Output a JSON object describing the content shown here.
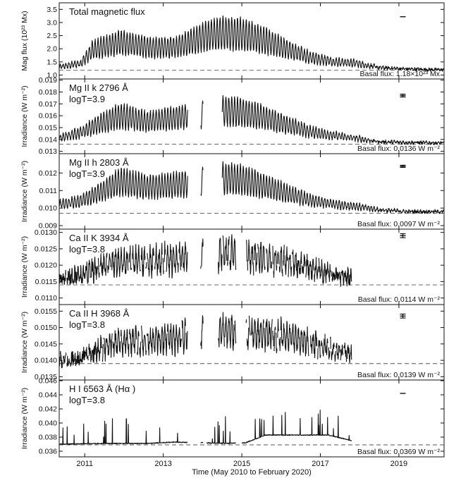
{
  "figure": {
    "xlabel": "Time (May 2010 to February 2020)"
  },
  "chart_data": [
    {
      "type": "line",
      "title": "Total magnetic flux",
      "subtitle": "",
      "ylabel": "Mag flux (10²³ Mx)",
      "basal_label": "Basal flux: 1.18×10²³ Mx",
      "basal": 1.18,
      "ylim": [
        0.85,
        3.75
      ],
      "yticks": [
        1.0,
        1.5,
        2.0,
        2.5,
        3.0,
        3.5
      ],
      "ytick_labels": [
        "1.0",
        "1.5",
        "2.0",
        "2.5",
        "3.0",
        "3.5"
      ],
      "xlim": [
        2010.35,
        2020.15
      ],
      "xticks": [
        2011,
        2013,
        2015,
        2017,
        2019
      ],
      "xtick_labels": [
        "2011",
        "2013",
        "2015",
        "2017",
        "2019"
      ],
      "error_bar": {
        "x": 2019.1,
        "y": 3.22,
        "err": 0.0
      },
      "envelope": [
        [
          2010.35,
          1.3
        ],
        [
          2010.9,
          1.45
        ],
        [
          2011.2,
          1.95
        ],
        [
          2011.9,
          2.25
        ],
        [
          2012.6,
          2.05
        ],
        [
          2013.3,
          2.05
        ],
        [
          2014.0,
          2.45
        ],
        [
          2014.5,
          2.6
        ],
        [
          2015.0,
          2.55
        ],
        [
          2015.5,
          2.35
        ],
        [
          2016.2,
          1.95
        ],
        [
          2016.8,
          1.65
        ],
        [
          2017.4,
          1.5
        ],
        [
          2017.9,
          1.45
        ],
        [
          2018.5,
          1.28
        ],
        [
          2019.2,
          1.23
        ],
        [
          2020.15,
          1.2
        ]
      ],
      "gaps": []
    },
    {
      "type": "line",
      "title": "Mg II k 2796 Å",
      "subtitle": "logT=3.9",
      "ylabel": "Irradiance (W m⁻²)",
      "basal_label": "Basal flux: 0.0136 W m⁻²",
      "basal": 0.0136,
      "ylim": [
        0.0128,
        0.0191
      ],
      "yticks": [
        0.013,
        0.014,
        0.015,
        0.016,
        0.017,
        0.018,
        0.019
      ],
      "ytick_labels": [
        "0.013",
        "0.014",
        "0.015",
        "0.016",
        "0.017",
        "0.018",
        "0.019"
      ],
      "xlim": [
        2010.35,
        2020.15
      ],
      "xticks": [
        2011,
        2013,
        2015,
        2017,
        2019
      ],
      "xtick_labels": [
        "2011",
        "2013",
        "2015",
        "2017",
        "2019"
      ],
      "error_bar": {
        "x": 2019.1,
        "y": 0.0177,
        "err": 0.00012
      },
      "envelope": [
        [
          2010.35,
          0.0141
        ],
        [
          2010.9,
          0.0146
        ],
        [
          2011.3,
          0.0152
        ],
        [
          2011.9,
          0.016
        ],
        [
          2012.6,
          0.0155
        ],
        [
          2013.3,
          0.0158
        ],
        [
          2014.5,
          0.0164
        ],
        [
          2015.0,
          0.0163
        ],
        [
          2015.5,
          0.0159
        ],
        [
          2016.2,
          0.0152
        ],
        [
          2016.8,
          0.0146
        ],
        [
          2017.4,
          0.0143
        ],
        [
          2017.9,
          0.0141
        ],
        [
          2018.5,
          0.0138
        ],
        [
          2019.2,
          0.01375
        ],
        [
          2020.15,
          0.0137
        ]
      ],
      "gaps": [
        [
          2013.62,
          2013.95
        ],
        [
          2014.02,
          2014.5
        ]
      ]
    },
    {
      "type": "line",
      "title": "Mg II h 2803 Å",
      "subtitle": "logT=3.9",
      "ylabel": "Irradiance (W m⁻²)",
      "basal_label": "Basal flux: 0.0097 W m⁻²",
      "basal": 0.0097,
      "ylim": [
        0.0088,
        0.0131
      ],
      "yticks": [
        0.009,
        0.01,
        0.011,
        0.012
      ],
      "ytick_labels": [
        "0.009",
        "0.010",
        "0.011",
        "0.012"
      ],
      "xlim": [
        2010.35,
        2020.15
      ],
      "xticks": [
        2011,
        2013,
        2015,
        2017,
        2019
      ],
      "xtick_labels": [
        "2011",
        "2013",
        "2015",
        "2017",
        "2019"
      ],
      "error_bar": {
        "x": 2019.1,
        "y": 0.01238,
        "err": 6e-05
      },
      "envelope": [
        [
          2010.35,
          0.0102
        ],
        [
          2010.9,
          0.0104
        ],
        [
          2011.3,
          0.0108
        ],
        [
          2011.9,
          0.0115
        ],
        [
          2012.6,
          0.0112
        ],
        [
          2013.3,
          0.0113
        ],
        [
          2014.5,
          0.0117
        ],
        [
          2015.0,
          0.0116
        ],
        [
          2015.5,
          0.0113
        ],
        [
          2016.2,
          0.0108
        ],
        [
          2016.8,
          0.0104
        ],
        [
          2017.4,
          0.0102
        ],
        [
          2017.9,
          0.0101
        ],
        [
          2018.5,
          0.0099
        ],
        [
          2019.2,
          0.0098
        ],
        [
          2020.15,
          0.0098
        ]
      ],
      "gaps": [
        [
          2013.62,
          2013.95
        ],
        [
          2014.02,
          2014.5
        ]
      ]
    },
    {
      "type": "line",
      "title": "Ca II K 3934 Å",
      "subtitle": "logT=3.8",
      "ylabel": "Irradiance (W m⁻²)",
      "basal_label": "Basal flux: 0.0114 W m⁻²",
      "basal": 0.0114,
      "ylim": [
        0.0108,
        0.0131
      ],
      "yticks": [
        0.011,
        0.0115,
        0.012,
        0.0125,
        0.013
      ],
      "ytick_labels": [
        "0.0110",
        "0.0115",
        "0.0120",
        "0.0125",
        "0.0130"
      ],
      "xlim": [
        2010.35,
        2020.15
      ],
      "xticks": [
        2011,
        2013,
        2015,
        2017,
        2019
      ],
      "xtick_labels": [
        "2011",
        "2013",
        "2015",
        "2017",
        "2019"
      ],
      "error_bar": {
        "x": 2019.1,
        "y": 0.0129,
        "err": 6e-05
      },
      "envelope": [
        [
          2010.35,
          0.0116
        ],
        [
          2010.9,
          0.0117
        ],
        [
          2011.3,
          0.0119
        ],
        [
          2011.9,
          0.0121
        ],
        [
          2012.6,
          0.0121
        ],
        [
          2013.3,
          0.0122
        ],
        [
          2014.5,
          0.0124
        ],
        [
          2015.0,
          0.0123
        ],
        [
          2015.5,
          0.0122
        ],
        [
          2016.2,
          0.0121
        ],
        [
          2016.8,
          0.0119
        ],
        [
          2017.4,
          0.0117
        ],
        [
          2017.8,
          0.0116
        ]
      ],
      "gaps": [
        [
          2013.62,
          2013.95
        ],
        [
          2014.02,
          2014.4
        ],
        [
          2014.85,
          2015.1
        ],
        [
          2017.8,
          2020.2
        ]
      ]
    },
    {
      "type": "line",
      "title": "Ca II H 3968 Å",
      "subtitle": "logT=3.8",
      "ylabel": "Irradiance (W m⁻²)",
      "basal_label": "Basal flux: 0.0139 W m⁻²",
      "basal": 0.0139,
      "ylim": [
        0.0134,
        0.0157
      ],
      "yticks": [
        0.0135,
        0.014,
        0.0145,
        0.015,
        0.0155
      ],
      "ytick_labels": [
        "0.0135",
        "0.0140",
        "0.0145",
        "0.0150",
        "0.0155"
      ],
      "xlim": [
        2010.35,
        2020.15
      ],
      "xticks": [
        2011,
        2013,
        2015,
        2017,
        2019
      ],
      "xtick_labels": [
        "2011",
        "2013",
        "2015",
        "2017",
        "2019"
      ],
      "error_bar": {
        "x": 2019.1,
        "y": 0.01535,
        "err": 6e-05
      },
      "envelope": [
        [
          2010.35,
          0.014
        ],
        [
          2010.9,
          0.0141
        ],
        [
          2011.3,
          0.0143
        ],
        [
          2011.9,
          0.0146
        ],
        [
          2012.6,
          0.0146
        ],
        [
          2013.3,
          0.0147
        ],
        [
          2014.5,
          0.0149
        ],
        [
          2015.0,
          0.0148
        ],
        [
          2015.5,
          0.0148
        ],
        [
          2016.2,
          0.0147
        ],
        [
          2016.8,
          0.0145
        ],
        [
          2017.4,
          0.0143
        ],
        [
          2017.8,
          0.0142
        ]
      ],
      "gaps": [
        [
          2013.62,
          2013.95
        ],
        [
          2014.02,
          2014.4
        ],
        [
          2014.85,
          2015.1
        ],
        [
          2017.8,
          2020.2
        ]
      ]
    },
    {
      "type": "line",
      "title": "H I 6563 Å (Hα )",
      "subtitle": "logT=3.8",
      "ylabel": "Irradiance (W m⁻²)",
      "basal_label": "Basal flux: 0.0369 W m⁻²",
      "basal": 0.0369,
      "ylim": [
        0.0352,
        0.0461
      ],
      "yticks": [
        0.036,
        0.038,
        0.04,
        0.042,
        0.044,
        0.046
      ],
      "ytick_labels": [
        "0.036",
        "0.038",
        "0.040",
        "0.042",
        "0.044",
        "0.046"
      ],
      "xlim": [
        2010.35,
        2020.15
      ],
      "xticks": [
        2011,
        2013,
        2015,
        2017,
        2019
      ],
      "xtick_labels": [
        "2011",
        "2013",
        "2015",
        "2017",
        "2019"
      ],
      "error_bar": {
        "x": 2019.1,
        "y": 0.0442,
        "err": 0.0
      },
      "envelope": [
        [
          2010.35,
          0.037
        ],
        [
          2011.5,
          0.0371
        ],
        [
          2012.6,
          0.0371
        ],
        [
          2013.3,
          0.0373
        ],
        [
          2014.0,
          0.0372
        ],
        [
          2014.6,
          0.0371
        ],
        [
          2015.1,
          0.0372
        ],
        [
          2015.6,
          0.0383
        ],
        [
          2016.5,
          0.0383
        ],
        [
          2017.2,
          0.0383
        ],
        [
          2017.8,
          0.0375
        ]
      ],
      "gaps": [
        [
          2013.62,
          2013.95
        ],
        [
          2014.02,
          2014.1
        ],
        [
          2014.85,
          2015.0
        ],
        [
          2017.8,
          2020.2
        ]
      ]
    }
  ]
}
